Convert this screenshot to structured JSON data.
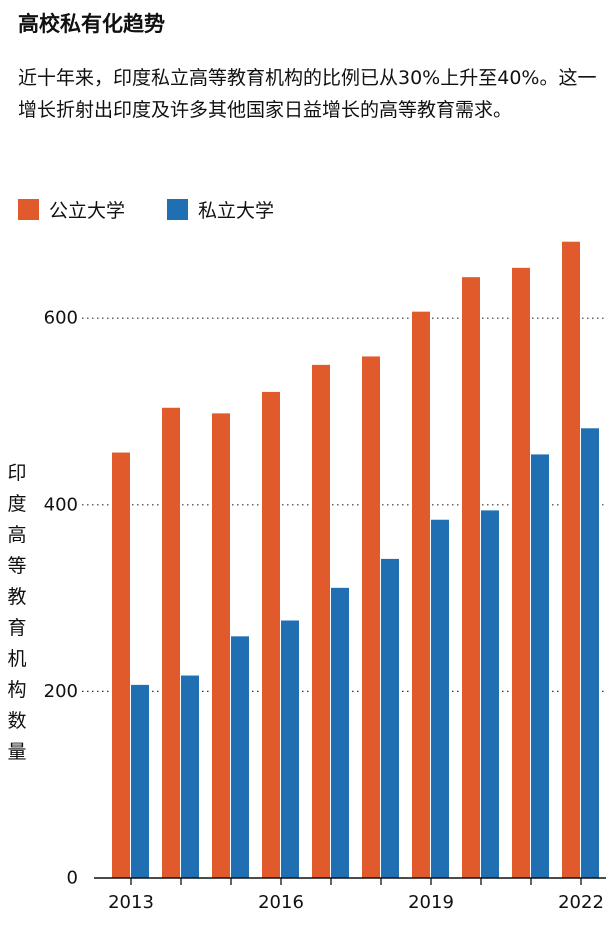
{
  "chart_data": {
    "type": "bar",
    "title": "高校私有化趋势",
    "subtitle": "近十年来，印度私立高等教育机构的比例已从30%上升至40%。这一增长折射出印度及许多其他国家日益增长的高等教育需求。",
    "xlabel": "",
    "ylabel": "印度高等教育机构数量",
    "categories": [
      "2013",
      "2014",
      "2015",
      "2016",
      "2017",
      "2018",
      "2019",
      "2020",
      "2021",
      "2022"
    ],
    "x_tick_labels": [
      "2013",
      "",
      "",
      "2016",
      "",
      "",
      "2019",
      "",
      "",
      "2022"
    ],
    "series": [
      {
        "name": "公立大学",
        "color": "#E05A2B",
        "values": [
          456,
          504,
          498,
          521,
          550,
          559,
          607,
          644,
          654,
          682
        ]
      },
      {
        "name": "私立大学",
        "color": "#1F6FB2",
        "values": [
          207,
          217,
          259,
          276,
          311,
          342,
          384,
          394,
          454,
          482
        ]
      }
    ],
    "yticks": [
      0,
      200,
      400,
      600
    ],
    "ylim": [
      0,
      700
    ],
    "grid": "dotted-horizontal",
    "legend": "top-left"
  }
}
